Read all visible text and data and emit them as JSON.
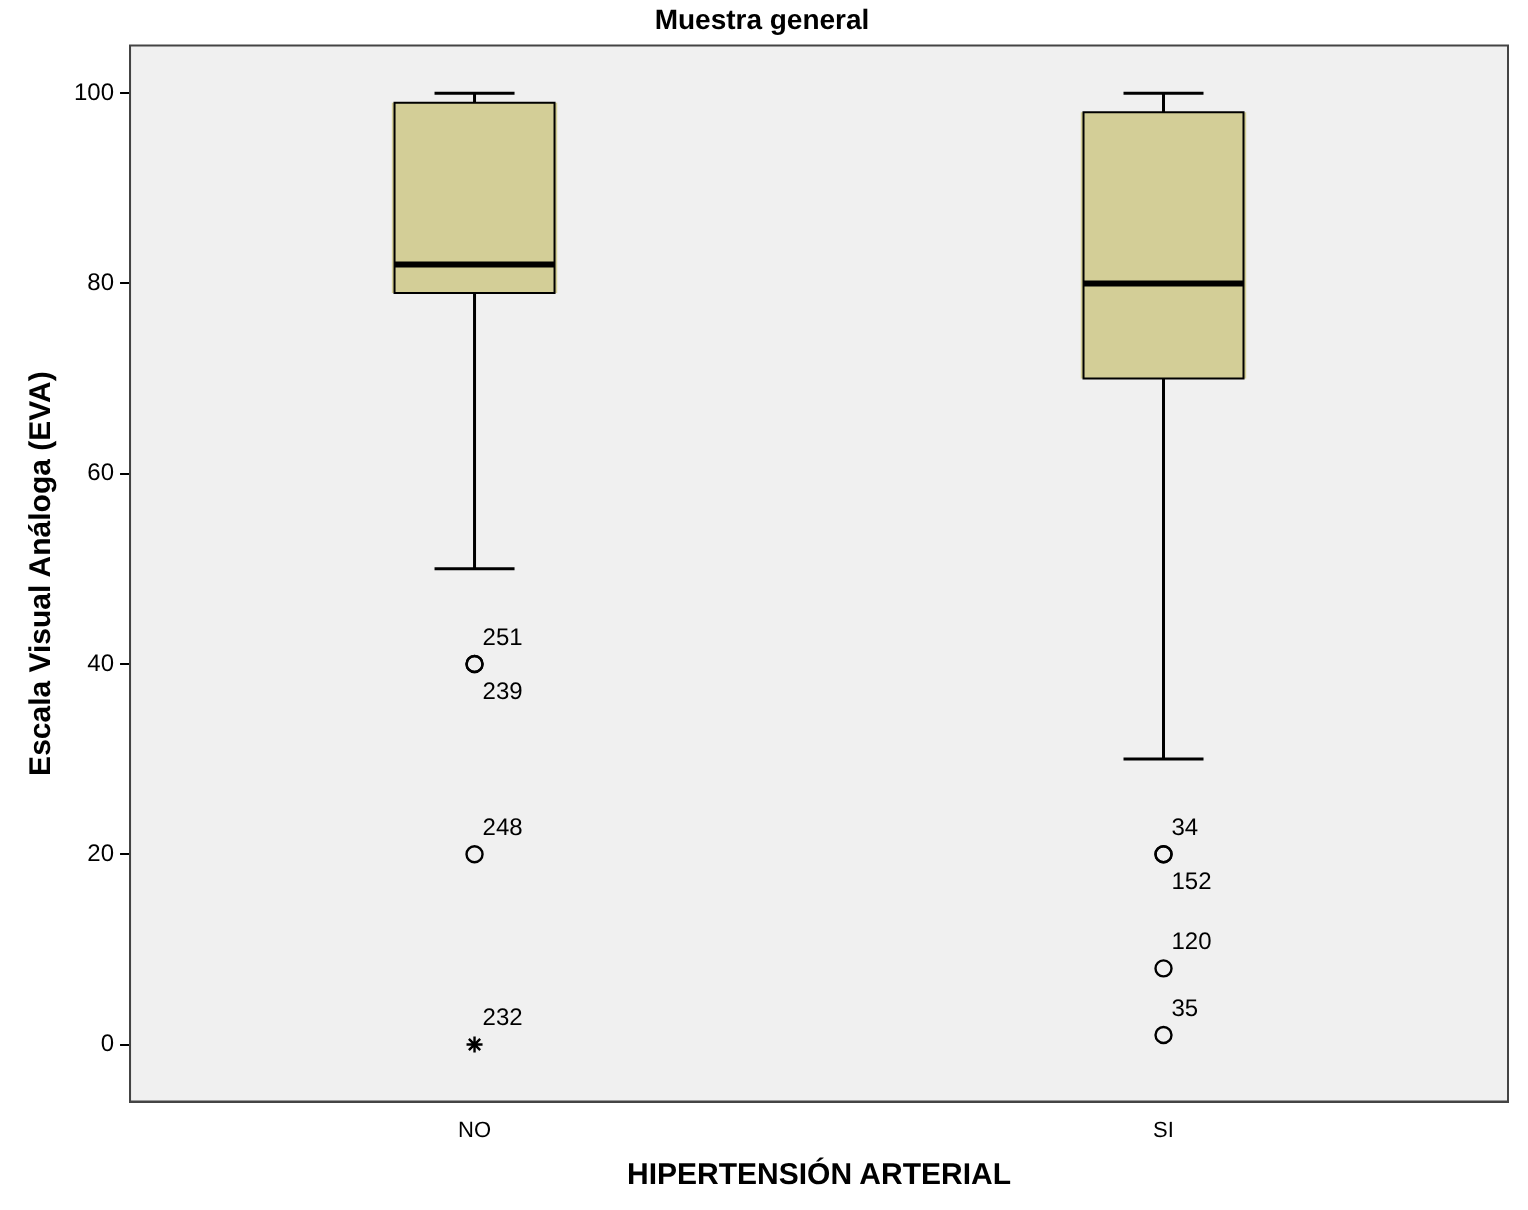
{
  "chart_data": {
    "type": "box",
    "title": "Muestra general",
    "xlabel": "HIPERTENSIÓN ARTERIAL",
    "ylabel": "Escala Visual Análoga (EVA)",
    "categories": [
      "NO",
      "SI"
    ],
    "ylim": [
      -6,
      105
    ],
    "yticks": [
      0,
      20,
      40,
      60,
      80,
      100
    ],
    "marker": "circle",
    "series": [
      {
        "color": "#d3ce97",
        "boxes": [
          {
            "low": 50,
            "q1": 79,
            "median": 82,
            "q3": 99,
            "high": 100,
            "outliers": [
              40,
              40,
              20
            ]
          },
          {
            "low": 30,
            "q1": 70,
            "median": 80,
            "q3": 98,
            "high": 100,
            "outliers": [
              20,
              20,
              8,
              1
            ]
          }
        ]
      },
      {
        "type": "scatter",
        "marker": "cross",
        "color": "#000000",
        "x": [
          "NO"
        ],
        "values": [
          0
        ]
      }
    ],
    "annotations": [
      "251",
      "239",
      "248",
      "232",
      "34",
      "152",
      "120",
      "35"
    ]
  }
}
